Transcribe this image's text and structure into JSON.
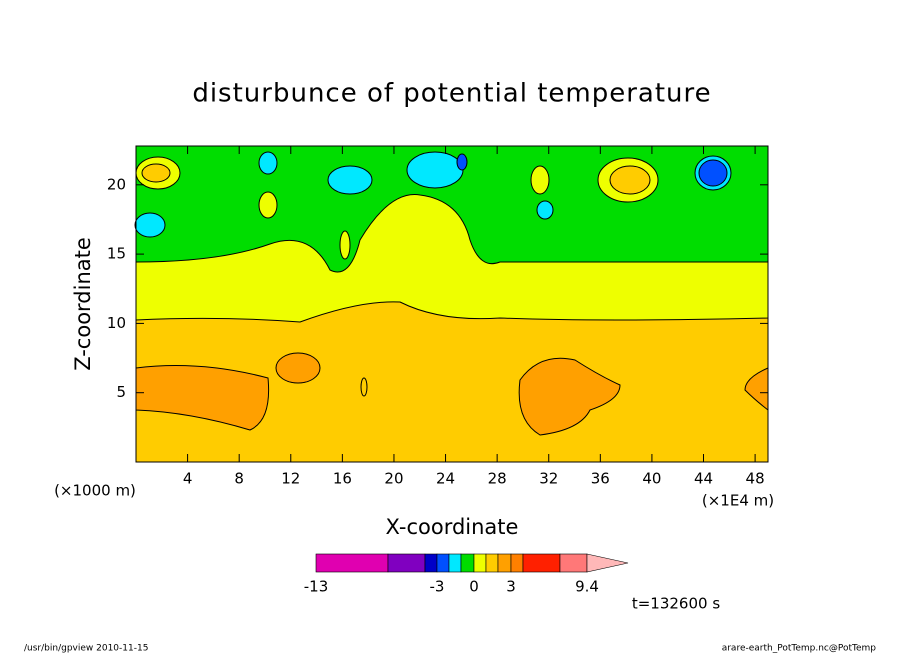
{
  "chart_data": {
    "type": "contour",
    "title": "disturbunce of potential temperature",
    "x_label": "X-coordinate",
    "y_label": "Z-coordinate",
    "x_unit_label": "(×1000 m)",
    "x_scale_label": "(×1E4 m)",
    "xlim": [
      0,
      49
    ],
    "ylim": [
      0,
      22.8
    ],
    "xticks": [
      4,
      8,
      12,
      16,
      20,
      24,
      28,
      32,
      36,
      40,
      44,
      48
    ],
    "yticks": [
      5,
      10,
      15,
      20
    ],
    "colorbar": {
      "colors": [
        "#e000b0",
        "#8000c0",
        "#0000c8",
        "#0050ff",
        "#00e8ff",
        "#00dd00",
        "#eeff00",
        "#ffcc00",
        "#ffa000",
        "#ff8000",
        "#ff2000",
        "#ff7878",
        "#ffb8b8"
      ],
      "levels": [
        -13,
        -3,
        0,
        3,
        9.4
      ]
    },
    "time_label": "t=132600 s",
    "footer_left": "/usr/bin/gpview  2010-11-15",
    "footer_right": "arare-earth_PotTemp.nc@PotTemp"
  }
}
